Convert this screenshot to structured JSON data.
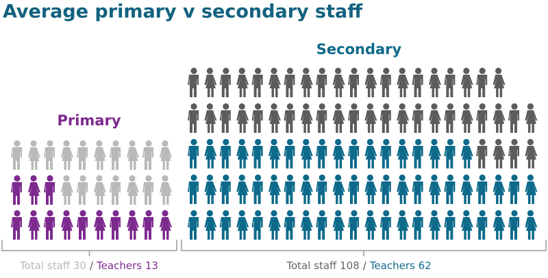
{
  "chart_data": {
    "type": "pictogram",
    "title": "Average primary v secondary staff",
    "separator": "/",
    "groups": [
      {
        "name": "Primary",
        "values": [
          30,
          13
        ],
        "value_labels": [
          "Total staff 30",
          "Teachers 13"
        ],
        "colors": [
          "#b9b9b9",
          "#7d2a8f"
        ]
      },
      {
        "name": "Secondary",
        "values": [
          108,
          62
        ],
        "value_labels": [
          "Total staff 108",
          "Teachers 62"
        ],
        "colors": [
          "#5c5c5c",
          "#0e6a8b"
        ]
      }
    ]
  }
}
